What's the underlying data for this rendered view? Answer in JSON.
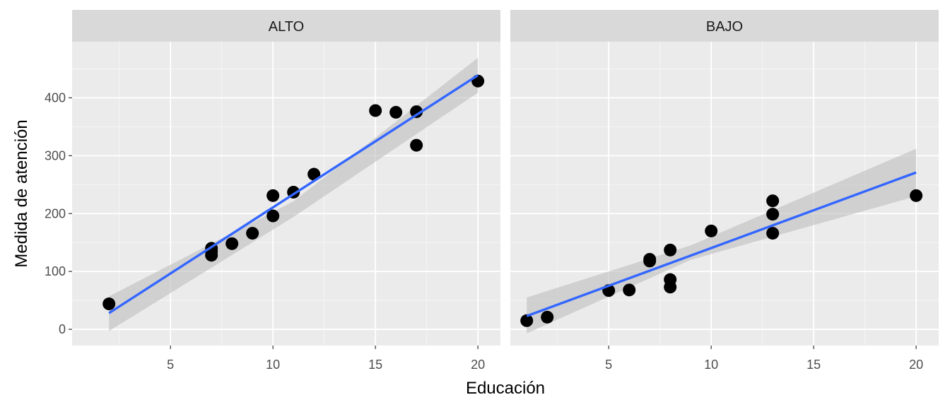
{
  "chart_data": {
    "type": "scatter",
    "xlabel": "Educación",
    "ylabel": "Medida de atención",
    "xlim": [
      0.2,
      21.1
    ],
    "ylim": [
      -28,
      497
    ],
    "x_ticks": [
      5,
      10,
      15,
      20
    ],
    "y_ticks": [
      0,
      100,
      200,
      300,
      400
    ],
    "grid": true,
    "colors": {
      "panel_bg": "#EBEBEB",
      "strip_bg": "#D9D9D9",
      "grid": "#FFFFFF",
      "point": "#000000",
      "line": "#3366FF",
      "ribbon": "#BEBEBE"
    },
    "panels": [
      {
        "strip": "ALTO",
        "points": {
          "x": [
            2,
            7,
            7,
            7,
            8,
            9,
            10,
            10,
            11,
            12,
            15,
            16,
            17,
            17,
            20
          ],
          "y": [
            44,
            140,
            135,
            128,
            148,
            166,
            231,
            196,
            237,
            268,
            378,
            375,
            376,
            318,
            429
          ]
        },
        "fit": {
          "x": [
            2,
            20
          ],
          "y": [
            28,
            439
          ]
        },
        "ribbon": {
          "x": [
            2,
            11,
            20
          ],
          "upper": [
            57,
            221,
            469
          ],
          "lower": [
            -3,
            194,
            409
          ]
        }
      },
      {
        "strip": "BAJO",
        "points": {
          "x": [
            1,
            2,
            5,
            6,
            7,
            7,
            8,
            8,
            8,
            10,
            13,
            13,
            13,
            20
          ],
          "y": [
            15,
            21,
            67,
            68,
            121,
            118,
            137,
            86,
            73,
            170,
            222,
            199,
            166,
            231
          ]
        },
        "fit": {
          "x": [
            1,
            20
          ],
          "y": [
            23,
            271
          ]
        },
        "ribbon": {
          "x": [
            1,
            9,
            20
          ],
          "upper": [
            55,
            145,
            312
          ],
          "lower": [
            -7,
            120,
            230
          ]
        }
      }
    ]
  }
}
